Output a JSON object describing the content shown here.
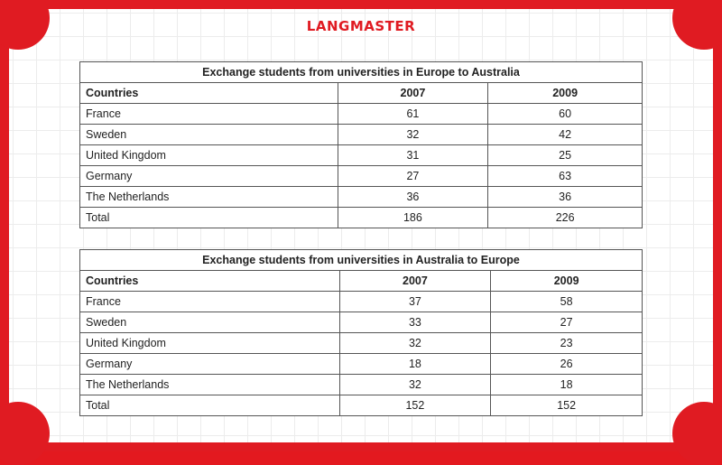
{
  "brand": {
    "logo_text": "LANGMASTER",
    "accent_color": "#e01b22"
  },
  "tables": [
    {
      "title": "Exchange students from universities in Europe to Australia",
      "headers": [
        "Countries",
        "2007",
        "2009"
      ],
      "rows": [
        [
          "France",
          "61",
          "60"
        ],
        [
          "Sweden",
          "32",
          "42"
        ],
        [
          "United Kingdom",
          "31",
          "25"
        ],
        [
          "Germany",
          "27",
          "63"
        ],
        [
          "The Netherlands",
          "36",
          "36"
        ],
        [
          "Total",
          "186",
          "226"
        ]
      ]
    },
    {
      "title": "Exchange students from universities in Australia to Europe",
      "headers": [
        "Countries",
        "2007",
        "2009"
      ],
      "rows": [
        [
          "France",
          "37",
          "58"
        ],
        [
          "Sweden",
          "33",
          "27"
        ],
        [
          "United Kingdom",
          "32",
          "23"
        ],
        [
          "Germany",
          "18",
          "26"
        ],
        [
          "The Netherlands",
          "32",
          "18"
        ],
        [
          "Total",
          "152",
          "152"
        ]
      ]
    }
  ]
}
